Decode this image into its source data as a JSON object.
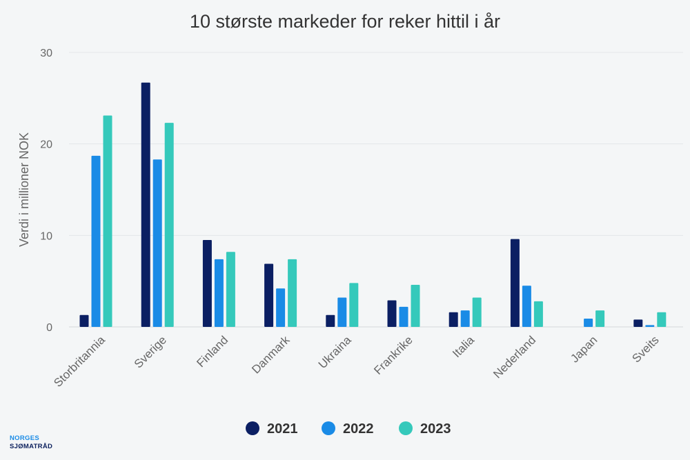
{
  "chart_data": {
    "type": "bar",
    "title": "10 største markeder for reker hittil i år",
    "ylabel": "Verdi i millioner NOK",
    "xlabel": "",
    "ylim": [
      0,
      30
    ],
    "yticks": [
      0,
      10,
      20,
      30
    ],
    "grid": true,
    "legend_position": "bottom-center",
    "categories": [
      "Storbritannia",
      "Sverige",
      "Finland",
      "Danmark",
      "Ukraina",
      "Frankrike",
      "Italia",
      "Nederland",
      "Japan",
      "Sveits"
    ],
    "series": [
      {
        "name": "2021",
        "color": "#0b1f63",
        "values": [
          1.3,
          26.7,
          9.5,
          6.9,
          1.3,
          2.9,
          1.6,
          9.6,
          0.0,
          0.8
        ]
      },
      {
        "name": "2022",
        "color": "#1a8be6",
        "values": [
          18.7,
          18.3,
          7.4,
          4.2,
          3.2,
          2.2,
          1.8,
          4.5,
          0.9,
          0.2
        ]
      },
      {
        "name": "2023",
        "color": "#35c9bb",
        "values": [
          23.1,
          22.3,
          8.2,
          7.4,
          4.8,
          4.6,
          3.2,
          2.8,
          1.8,
          1.6
        ]
      }
    ]
  },
  "logo": {
    "line1": "NORGES",
    "line2": "SJØMATRÅD"
  }
}
